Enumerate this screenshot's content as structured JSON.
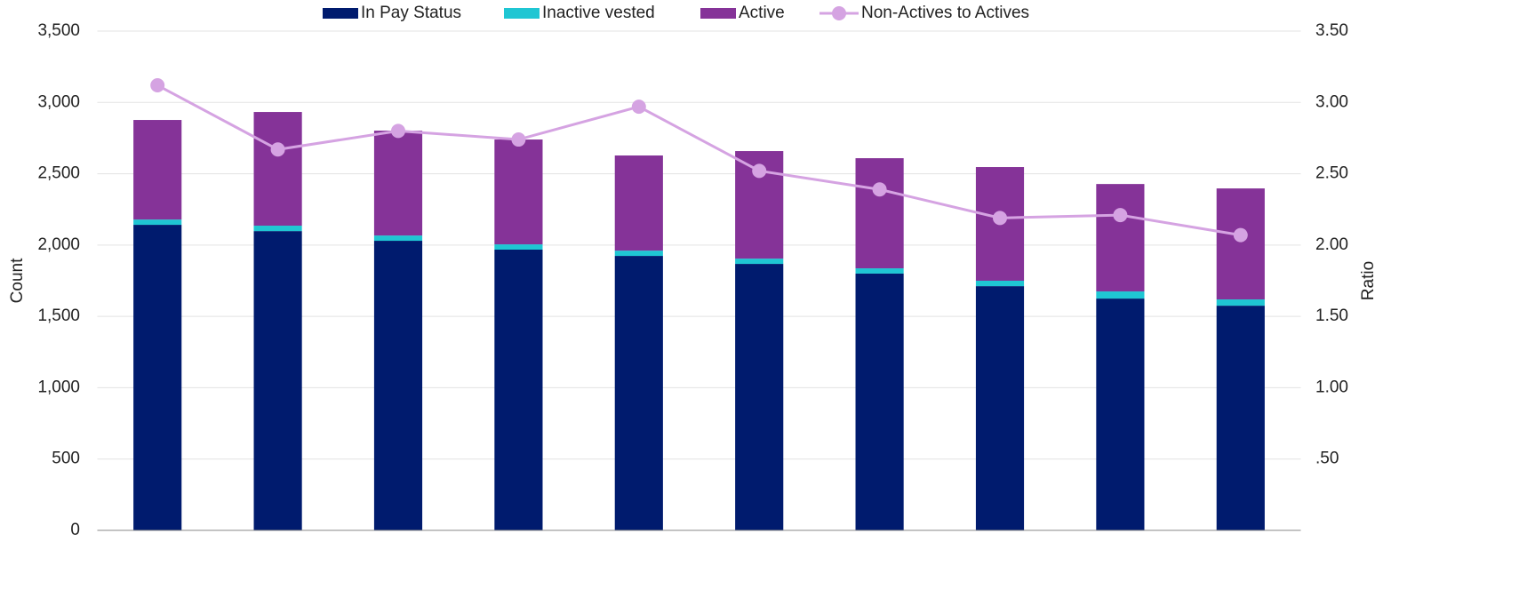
{
  "chart_data": {
    "type": "bar",
    "categories": [
      null,
      null,
      null,
      null,
      null,
      null,
      null,
      null,
      null,
      null
    ],
    "series": [
      {
        "name": "In Pay Status",
        "color": "#001b6e",
        "type": "bar",
        "values": [
          2142,
          2098,
          2030,
          1968,
          1924,
          1868,
          1800,
          1712,
          1625,
          1575
        ]
      },
      {
        "name": "Inactive vested",
        "color": "#1fc6d3",
        "type": "bar",
        "values": [
          37,
          38,
          37,
          37,
          37,
          37,
          37,
          38,
          50,
          44
        ]
      },
      {
        "name": "Active",
        "color": "#853398",
        "type": "bar",
        "values": [
          698,
          797,
          735,
          735,
          667,
          754,
          772,
          797,
          753,
          778
        ]
      },
      {
        "name": "Non-Actives to Actives",
        "color": "#d5a3e2",
        "type": "line",
        "axis": "y2",
        "values": [
          3.12,
          2.67,
          2.8,
          2.74,
          2.97,
          2.52,
          2.39,
          2.19,
          2.21,
          2.07
        ]
      }
    ],
    "y_label": "Count",
    "y2_label": "Ratio",
    "ylim": [
      0,
      3500
    ],
    "yticks": [
      0,
      500,
      {
        "value": 1000,
        "label": "1,000"
      },
      {
        "value": 1500,
        "label": "1,500"
      },
      {
        "value": 2000,
        "label": "2,000"
      },
      {
        "value": 2500,
        "label": "2,500"
      },
      {
        "value": 3000,
        "label": "3,000"
      },
      {
        "value": 3500,
        "label": "3,500"
      }
    ],
    "y2lim": [
      0,
      3.5
    ],
    "y2ticks": [
      {
        "value": 0.5,
        "label": ".50"
      },
      {
        "value": 1,
        "label": "1.00"
      },
      {
        "value": 1.5,
        "label": "1.50"
      },
      {
        "value": 2,
        "label": "2.00"
      },
      {
        "value": 2.5,
        "label": "2.50"
      },
      {
        "value": 3,
        "label": "3.00"
      },
      {
        "value": 3.5,
        "label": "3.50"
      }
    ],
    "grid": true,
    "legend": "top"
  }
}
